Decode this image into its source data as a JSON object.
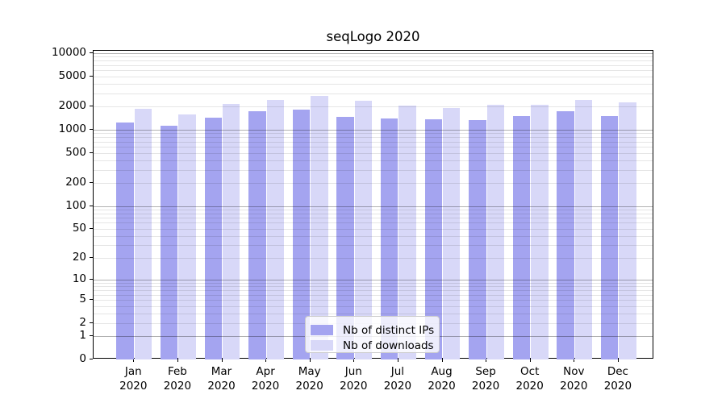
{
  "chart_data": {
    "type": "bar",
    "title": "seqLogo 2020",
    "year": "2020",
    "categories": [
      "Jan",
      "Feb",
      "Mar",
      "Apr",
      "May",
      "Jun",
      "Jul",
      "Aug",
      "Sep",
      "Oct",
      "Nov",
      "Dec"
    ],
    "series": [
      {
        "name": "Nb of distinct IPs",
        "color": "#a4a4f0",
        "values": [
          1250,
          1130,
          1440,
          1730,
          1830,
          1480,
          1410,
          1360,
          1330,
          1510,
          1760,
          1520
        ]
      },
      {
        "name": "Nb of downloads",
        "color": "#d8d8f8",
        "values": [
          1880,
          1590,
          2160,
          2430,
          2750,
          2380,
          2070,
          1940,
          2130,
          2120,
          2470,
          2260
        ]
      }
    ],
    "xlabel": "",
    "ylabel": "",
    "y_scale": "log1p",
    "ylim": [
      0,
      11000
    ],
    "yticks": [
      {
        "v": 0,
        "label": "0"
      },
      {
        "v": 1,
        "label": "1"
      },
      {
        "v": 2,
        "label": "2"
      },
      {
        "v": 5,
        "label": "5"
      },
      {
        "v": 10,
        "label": "10"
      },
      {
        "v": 20,
        "label": "20"
      },
      {
        "v": 50,
        "label": "50"
      },
      {
        "v": 100,
        "label": "100"
      },
      {
        "v": 200,
        "label": "200"
      },
      {
        "v": 500,
        "label": "500"
      },
      {
        "v": 1000,
        "label": "1000"
      },
      {
        "v": 2000,
        "label": "2000"
      },
      {
        "v": 5000,
        "label": "5000"
      },
      {
        "v": 10000,
        "label": "10000"
      }
    ],
    "grid": true,
    "grid_major_decades": [
      1,
      10,
      100,
      1000,
      10000
    ],
    "legend_position": "lower center"
  }
}
